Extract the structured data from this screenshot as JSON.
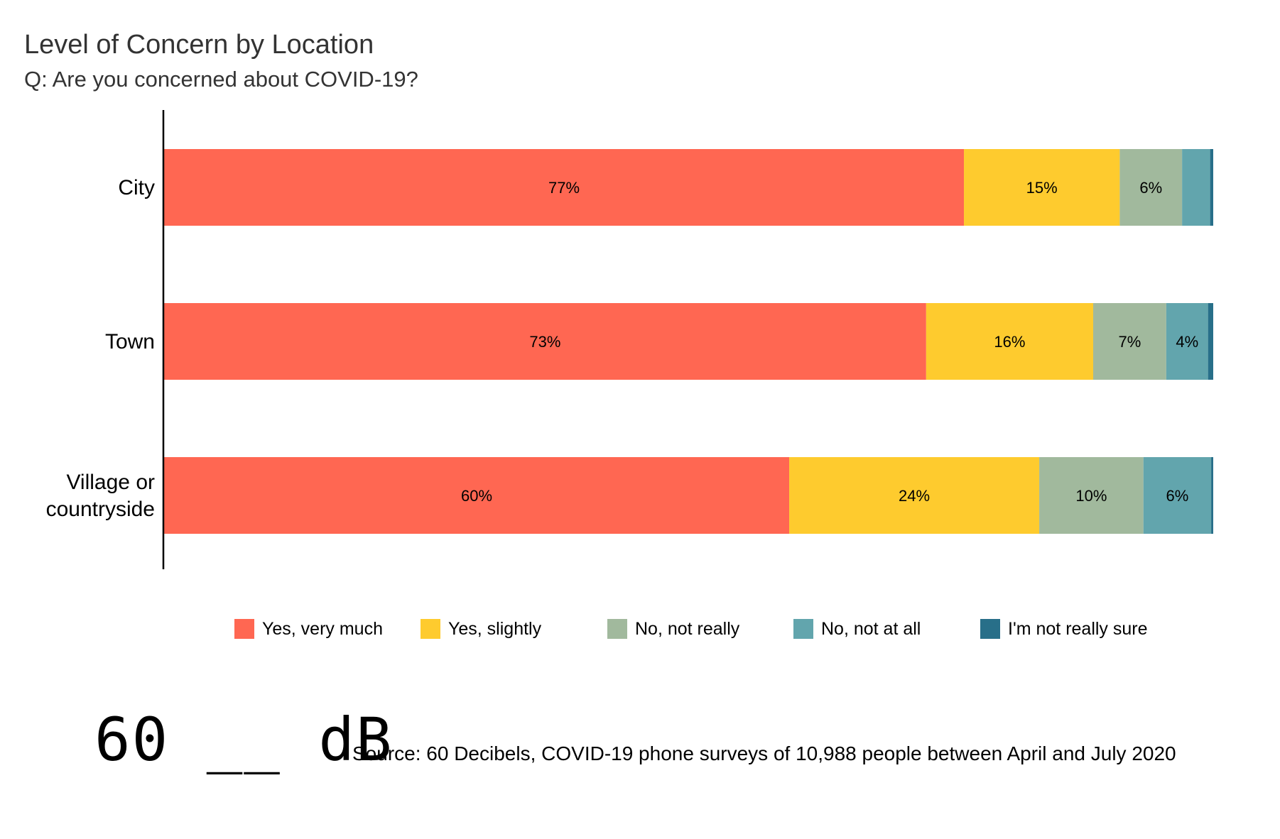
{
  "title": "Level of Concern by Location",
  "subtitle": "Q: Are you concerned about COVID-19?",
  "chart_data": {
    "type": "bar",
    "orientation": "horizontal",
    "stacked": true,
    "categories": [
      "City",
      "Town",
      "Village or countryside"
    ],
    "series": [
      {
        "name": "Yes, very much",
        "color": "#FF6752",
        "values": [
          77,
          73,
          60
        ],
        "labels": [
          "77%",
          "73%",
          "60%"
        ]
      },
      {
        "name": "Yes, slightly",
        "color": "#FECB2E",
        "values": [
          15,
          16,
          24
        ],
        "labels": [
          "15%",
          "16%",
          "24%"
        ]
      },
      {
        "name": "No, not really",
        "color": "#A1B99D",
        "values": [
          6,
          7,
          10
        ],
        "labels": [
          "6%",
          "7%",
          "10%"
        ]
      },
      {
        "name": "No, not at all",
        "color": "#62A5AD",
        "values": [
          2.7,
          4,
          6.5
        ],
        "labels": [
          "",
          "4%",
          "6%"
        ]
      },
      {
        "name": "I'm not really sure",
        "color": "#286F89",
        "values": [
          0.3,
          0.5,
          0.2
        ],
        "labels": [
          "",
          "",
          ""
        ]
      }
    ],
    "xlim": [
      0,
      100
    ],
    "legend_position": "bottom"
  },
  "logo": {
    "text": "60 __ dB"
  },
  "source": "Source: 60 Decibels, COVID-19 phone surveys of 10,988 people between April and July 2020"
}
